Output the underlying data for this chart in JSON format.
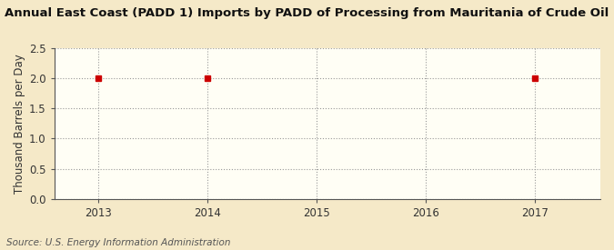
{
  "title": "Annual East Coast (PADD 1) Imports by PADD of Processing from Mauritania of Crude Oil",
  "ylabel": "Thousand Barrels per Day",
  "source": "Source: U.S. Energy Information Administration",
  "outer_bg_color": "#f5e9c8",
  "plot_bg_color": "#fffef5",
  "data_x": [
    2013,
    2014,
    2017
  ],
  "data_y": [
    2.0,
    2.0,
    2.0
  ],
  "xlim": [
    2012.6,
    2017.6
  ],
  "ylim": [
    0.0,
    2.5
  ],
  "xticks": [
    2013,
    2014,
    2015,
    2016,
    2017
  ],
  "yticks": [
    0.0,
    0.5,
    1.0,
    1.5,
    2.0,
    2.5
  ],
  "marker_color": "#cc0000",
  "marker_style": "s",
  "marker_size": 4,
  "grid_color": "#999999",
  "grid_linestyle": ":",
  "title_fontsize": 9.5,
  "axis_fontsize": 8.5,
  "tick_fontsize": 8.5,
  "source_fontsize": 7.5
}
